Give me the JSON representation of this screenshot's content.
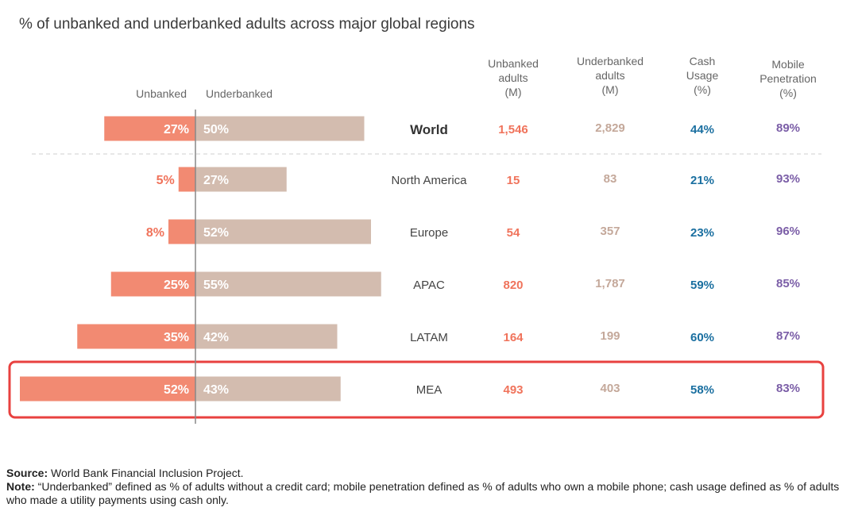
{
  "title": "% of unbanked and underbanked adults across major global regions",
  "colors": {
    "unbanked_bar": "#f28a72",
    "underbanked_bar": "#d3bcaf",
    "unbanked_text": "#f0735b",
    "underbanked_text": "#c4a89a",
    "cash_text": "#1a6fa0",
    "mobile_text": "#7b5ea7",
    "highlight_border": "#e8413f",
    "axis": "#888888"
  },
  "chart_data": {
    "type": "bar",
    "orientation": "horizontal-diverging",
    "title": "% of unbanked and underbanked adults across major global regions",
    "bar_headers": {
      "left": "Unbanked",
      "right": "Underbanked"
    },
    "column_headers": [
      [
        "Unbanked",
        "adults",
        "(M)"
      ],
      [
        "Underbanked",
        "adults",
        "(M)"
      ],
      [
        "Cash",
        "Usage",
        "(%)"
      ],
      [
        "Mobile",
        "Penetration",
        "(%)"
      ]
    ],
    "categories": [
      "World",
      "North America",
      "Europe",
      "APAC",
      "LATAM",
      "MEA"
    ],
    "series": [
      {
        "name": "Unbanked",
        "values": [
          27,
          5,
          8,
          25,
          35,
          52
        ],
        "labels": [
          "27%",
          "5%",
          "8%",
          "25%",
          "35%",
          "52%"
        ]
      },
      {
        "name": "Underbanked",
        "values": [
          50,
          27,
          52,
          55,
          42,
          43
        ],
        "labels": [
          "50%",
          "27%",
          "52%",
          "55%",
          "42%",
          "43%"
        ]
      }
    ],
    "table": {
      "unbanked_adults_m": [
        "1,546",
        "15",
        "54",
        "820",
        "164",
        "493"
      ],
      "underbanked_adults_m": [
        "2,829",
        "83",
        "357",
        "1,787",
        "199",
        "403"
      ],
      "cash_usage_pct": [
        "44%",
        "21%",
        "23%",
        "59%",
        "60%",
        "58%"
      ],
      "mobile_penetration_pct": [
        "89%",
        "93%",
        "96%",
        "85%",
        "87%",
        "83%"
      ]
    },
    "highlighted_category": "MEA",
    "emphasized_category": "World"
  },
  "footer": {
    "source_label": "Source:",
    "source_text": " World Bank Financial Inclusion Project.",
    "note_label": "Note:",
    "note_text": " “Underbanked” defined as % of adults without a credit card; mobile penetration defined as % of adults who own a mobile phone; cash usage defined as % of adults who made a utility payments using cash only."
  }
}
